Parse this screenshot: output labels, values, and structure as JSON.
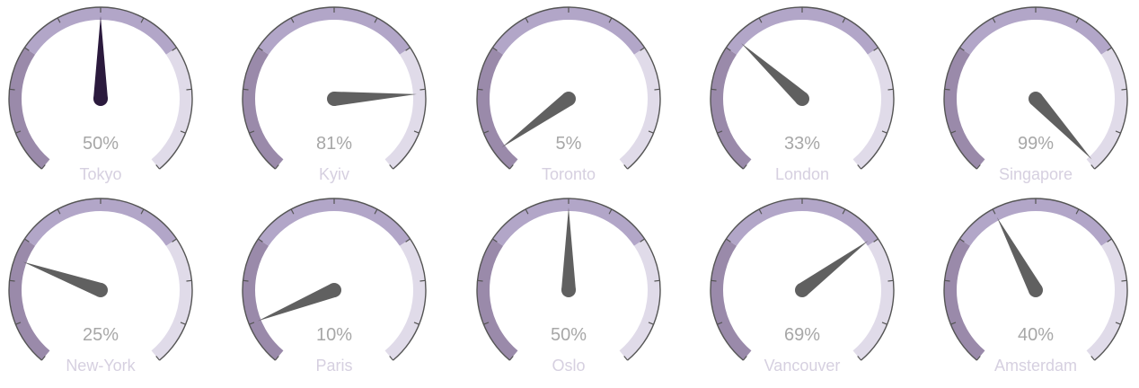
{
  "chart_data": {
    "type": "gauge",
    "range": [
      0,
      100
    ],
    "unit": "%",
    "bands": [
      {
        "from": 0,
        "to": 30,
        "color": "#9a8aaa"
      },
      {
        "from": 30,
        "to": 70,
        "color": "#b2a6c8"
      },
      {
        "from": 70,
        "to": 100,
        "color": "#e0dbe9"
      }
    ],
    "tick_count": 11,
    "tick_color": "#555555",
    "needle_color": "#606060",
    "highlight_needle_color": "#2b1a3d",
    "gauges": [
      {
        "label": "Tokyo",
        "value": 50,
        "value_label": "50%",
        "highlight": true
      },
      {
        "label": "Kyiv",
        "value": 81,
        "value_label": "81%"
      },
      {
        "label": "Toronto",
        "value": 5,
        "value_label": "5%"
      },
      {
        "label": "London",
        "value": 33,
        "value_label": "33%"
      },
      {
        "label": "Singapore",
        "value": 99,
        "value_label": "99%"
      },
      {
        "label": "New-York",
        "value": 25,
        "value_label": "25%"
      },
      {
        "label": "Paris",
        "value": 10,
        "value_label": "10%"
      },
      {
        "label": "Oslo",
        "value": 50,
        "value_label": "50%"
      },
      {
        "label": "Vancouver",
        "value": 69,
        "value_label": "69%"
      },
      {
        "label": "Amsterdam",
        "value": 40,
        "value_label": "40%"
      }
    ]
  }
}
